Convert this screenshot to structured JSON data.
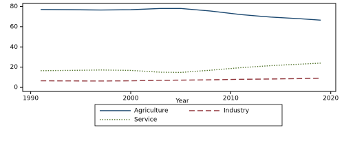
{
  "chart_data": {
    "type": "line",
    "xlabel": "Year",
    "x": [
      1991,
      1994,
      1997,
      2000,
      2003,
      2005,
      2008,
      2011,
      2014,
      2017,
      2019
    ],
    "series": [
      {
        "name": "Agriculture",
        "color": "#1a476f",
        "style": "solid",
        "values": [
          77,
          76.8,
          76.5,
          76.8,
          78,
          78,
          75.5,
          72,
          69.5,
          67.8,
          66.5
        ]
      },
      {
        "name": "Industry",
        "color": "#90353b",
        "style": "dash",
        "values": [
          6.5,
          6.4,
          6.3,
          6.5,
          7,
          7.2,
          7.5,
          8,
          8.3,
          8.7,
          9
        ]
      },
      {
        "name": "Service",
        "color": "#55752f",
        "style": "dot",
        "values": [
          16.5,
          16.8,
          17.2,
          16.8,
          15,
          14.8,
          17,
          19.5,
          21.5,
          23,
          24
        ]
      }
    ],
    "xlim": [
      1989.2,
      2020.5
    ],
    "xticks": [
      1990,
      2000,
      2010,
      2020
    ],
    "ylim": [
      -4,
      83
    ],
    "yticks": [
      0,
      20,
      40,
      60,
      80
    ],
    "grid": false,
    "legend": "bottom"
  }
}
